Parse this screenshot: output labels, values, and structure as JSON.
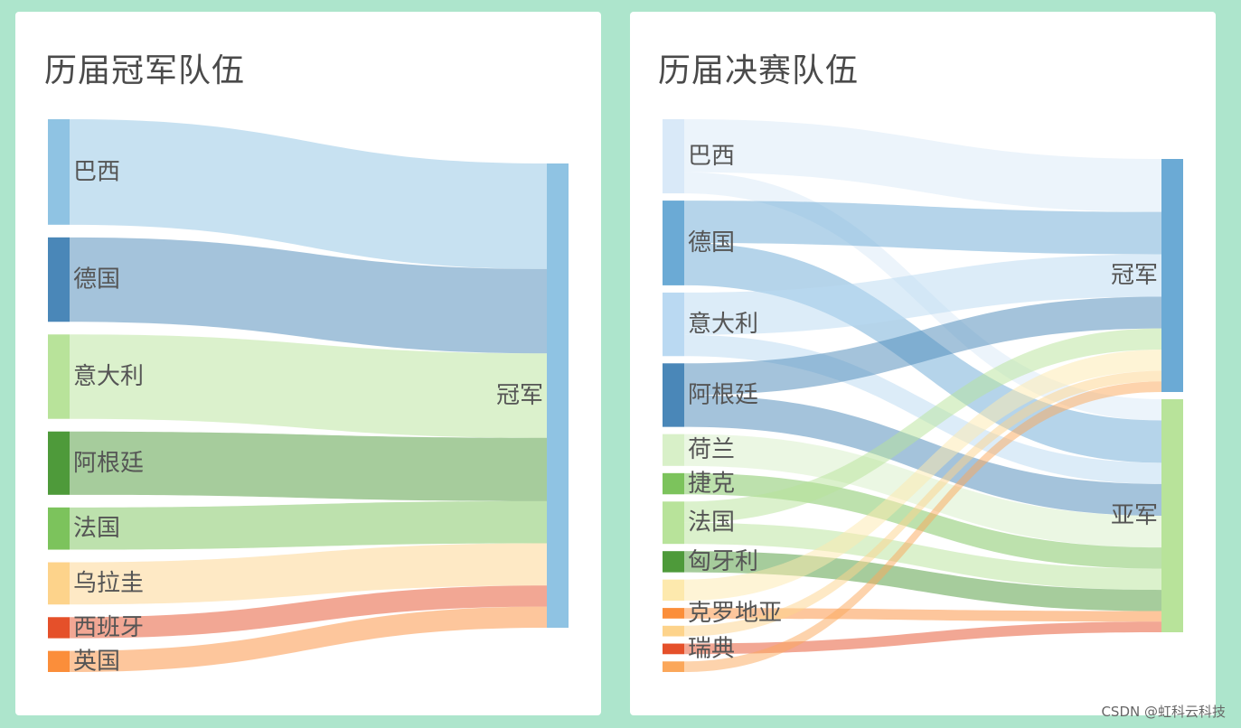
{
  "colors": {
    "background": "#ade5cc",
    "card": "#ffffff",
    "title": "#4a4a4a",
    "label": "#555555"
  },
  "watermark": "CSDN @虹科云科技",
  "chart_data": [
    {
      "type": "sankey",
      "title": "历届冠军队伍",
      "sources": [
        {
          "name": "巴西",
          "color": "#8fc3e3"
        },
        {
          "name": "德国",
          "color": "#4a87b8"
        },
        {
          "name": "意大利",
          "color": "#b8e39a"
        },
        {
          "name": "阿根廷",
          "color": "#4e9a3a"
        },
        {
          "name": "法国",
          "color": "#7cc35c"
        },
        {
          "name": "乌拉圭",
          "color": "#fdd38b"
        },
        {
          "name": "西班牙",
          "color": "#e5502a"
        },
        {
          "name": "英国",
          "color": "#fb8e3a"
        }
      ],
      "targets": [
        {
          "name": "冠军",
          "color": "#8fc3e3"
        }
      ],
      "links": [
        {
          "source": "巴西",
          "target": "冠军",
          "value": 5
        },
        {
          "source": "德国",
          "target": "冠军",
          "value": 4
        },
        {
          "source": "意大利",
          "target": "冠军",
          "value": 4
        },
        {
          "source": "阿根廷",
          "target": "冠军",
          "value": 3
        },
        {
          "source": "法国",
          "target": "冠军",
          "value": 2
        },
        {
          "source": "乌拉圭",
          "target": "冠军",
          "value": 2
        },
        {
          "source": "西班牙",
          "target": "冠军",
          "value": 1
        },
        {
          "source": "英国",
          "target": "冠军",
          "value": 1
        }
      ]
    },
    {
      "type": "sankey",
      "title": "历届决赛队伍",
      "sources": [
        {
          "name": "巴西",
          "color": "#d9e9f8"
        },
        {
          "name": "德国",
          "color": "#6baad5"
        },
        {
          "name": "意大利",
          "color": "#bad9f2"
        },
        {
          "name": "阿根廷",
          "color": "#4a87b8"
        },
        {
          "name": "荷兰",
          "color": "#d8f0c8"
        },
        {
          "name": "捷克",
          "color": "#7cc35c"
        },
        {
          "name": "法国",
          "color": "#b8e39a"
        },
        {
          "name": "匈牙利",
          "color": "#4e9a3a"
        },
        {
          "name": "",
          "color": "#fde9ad"
        },
        {
          "name": "克罗地亚",
          "color": "#fb8e3a"
        },
        {
          "name": "",
          "color": "#fdd38b"
        },
        {
          "name": "瑞典",
          "color": "#e5502a"
        },
        {
          "name": "",
          "color": "#fba75a"
        }
      ],
      "targets": [
        {
          "name": "冠军",
          "color": "#6baad5"
        },
        {
          "name": "亚军",
          "color": "#b8e39a"
        }
      ],
      "links": [
        {
          "source": 0,
          "target": 0,
          "value": 5,
          "color": "#d9e9f8"
        },
        {
          "source": 0,
          "target": 1,
          "value": 2,
          "color": "#d9e9f8"
        },
        {
          "source": 1,
          "target": 0,
          "value": 4,
          "color": "#6baad5"
        },
        {
          "source": 1,
          "target": 1,
          "value": 4,
          "color": "#6baad5"
        },
        {
          "source": 2,
          "target": 0,
          "value": 4,
          "color": "#bad9f2"
        },
        {
          "source": 2,
          "target": 1,
          "value": 2,
          "color": "#bad9f2"
        },
        {
          "source": 3,
          "target": 0,
          "value": 3,
          "color": "#4a87b8"
        },
        {
          "source": 3,
          "target": 1,
          "value": 3,
          "color": "#4a87b8"
        },
        {
          "source": 4,
          "target": 1,
          "value": 3,
          "color": "#d8f0c8"
        },
        {
          "source": 5,
          "target": 1,
          "value": 2,
          "color": "#7cc35c"
        },
        {
          "source": 6,
          "target": 0,
          "value": 2,
          "color": "#b8e39a"
        },
        {
          "source": 6,
          "target": 1,
          "value": 2,
          "color": "#b8e39a"
        },
        {
          "source": 7,
          "target": 1,
          "value": 2,
          "color": "#4e9a3a"
        },
        {
          "source": 8,
          "target": 0,
          "value": 2,
          "color": "#fde9ad"
        },
        {
          "source": 9,
          "target": 1,
          "value": 1,
          "color": "#fb8e3a"
        },
        {
          "source": 10,
          "target": 0,
          "value": 1,
          "color": "#fdd38b"
        },
        {
          "source": 11,
          "target": 1,
          "value": 1,
          "color": "#e5502a"
        },
        {
          "source": 12,
          "target": 0,
          "value": 1,
          "color": "#fba75a"
        }
      ]
    }
  ]
}
